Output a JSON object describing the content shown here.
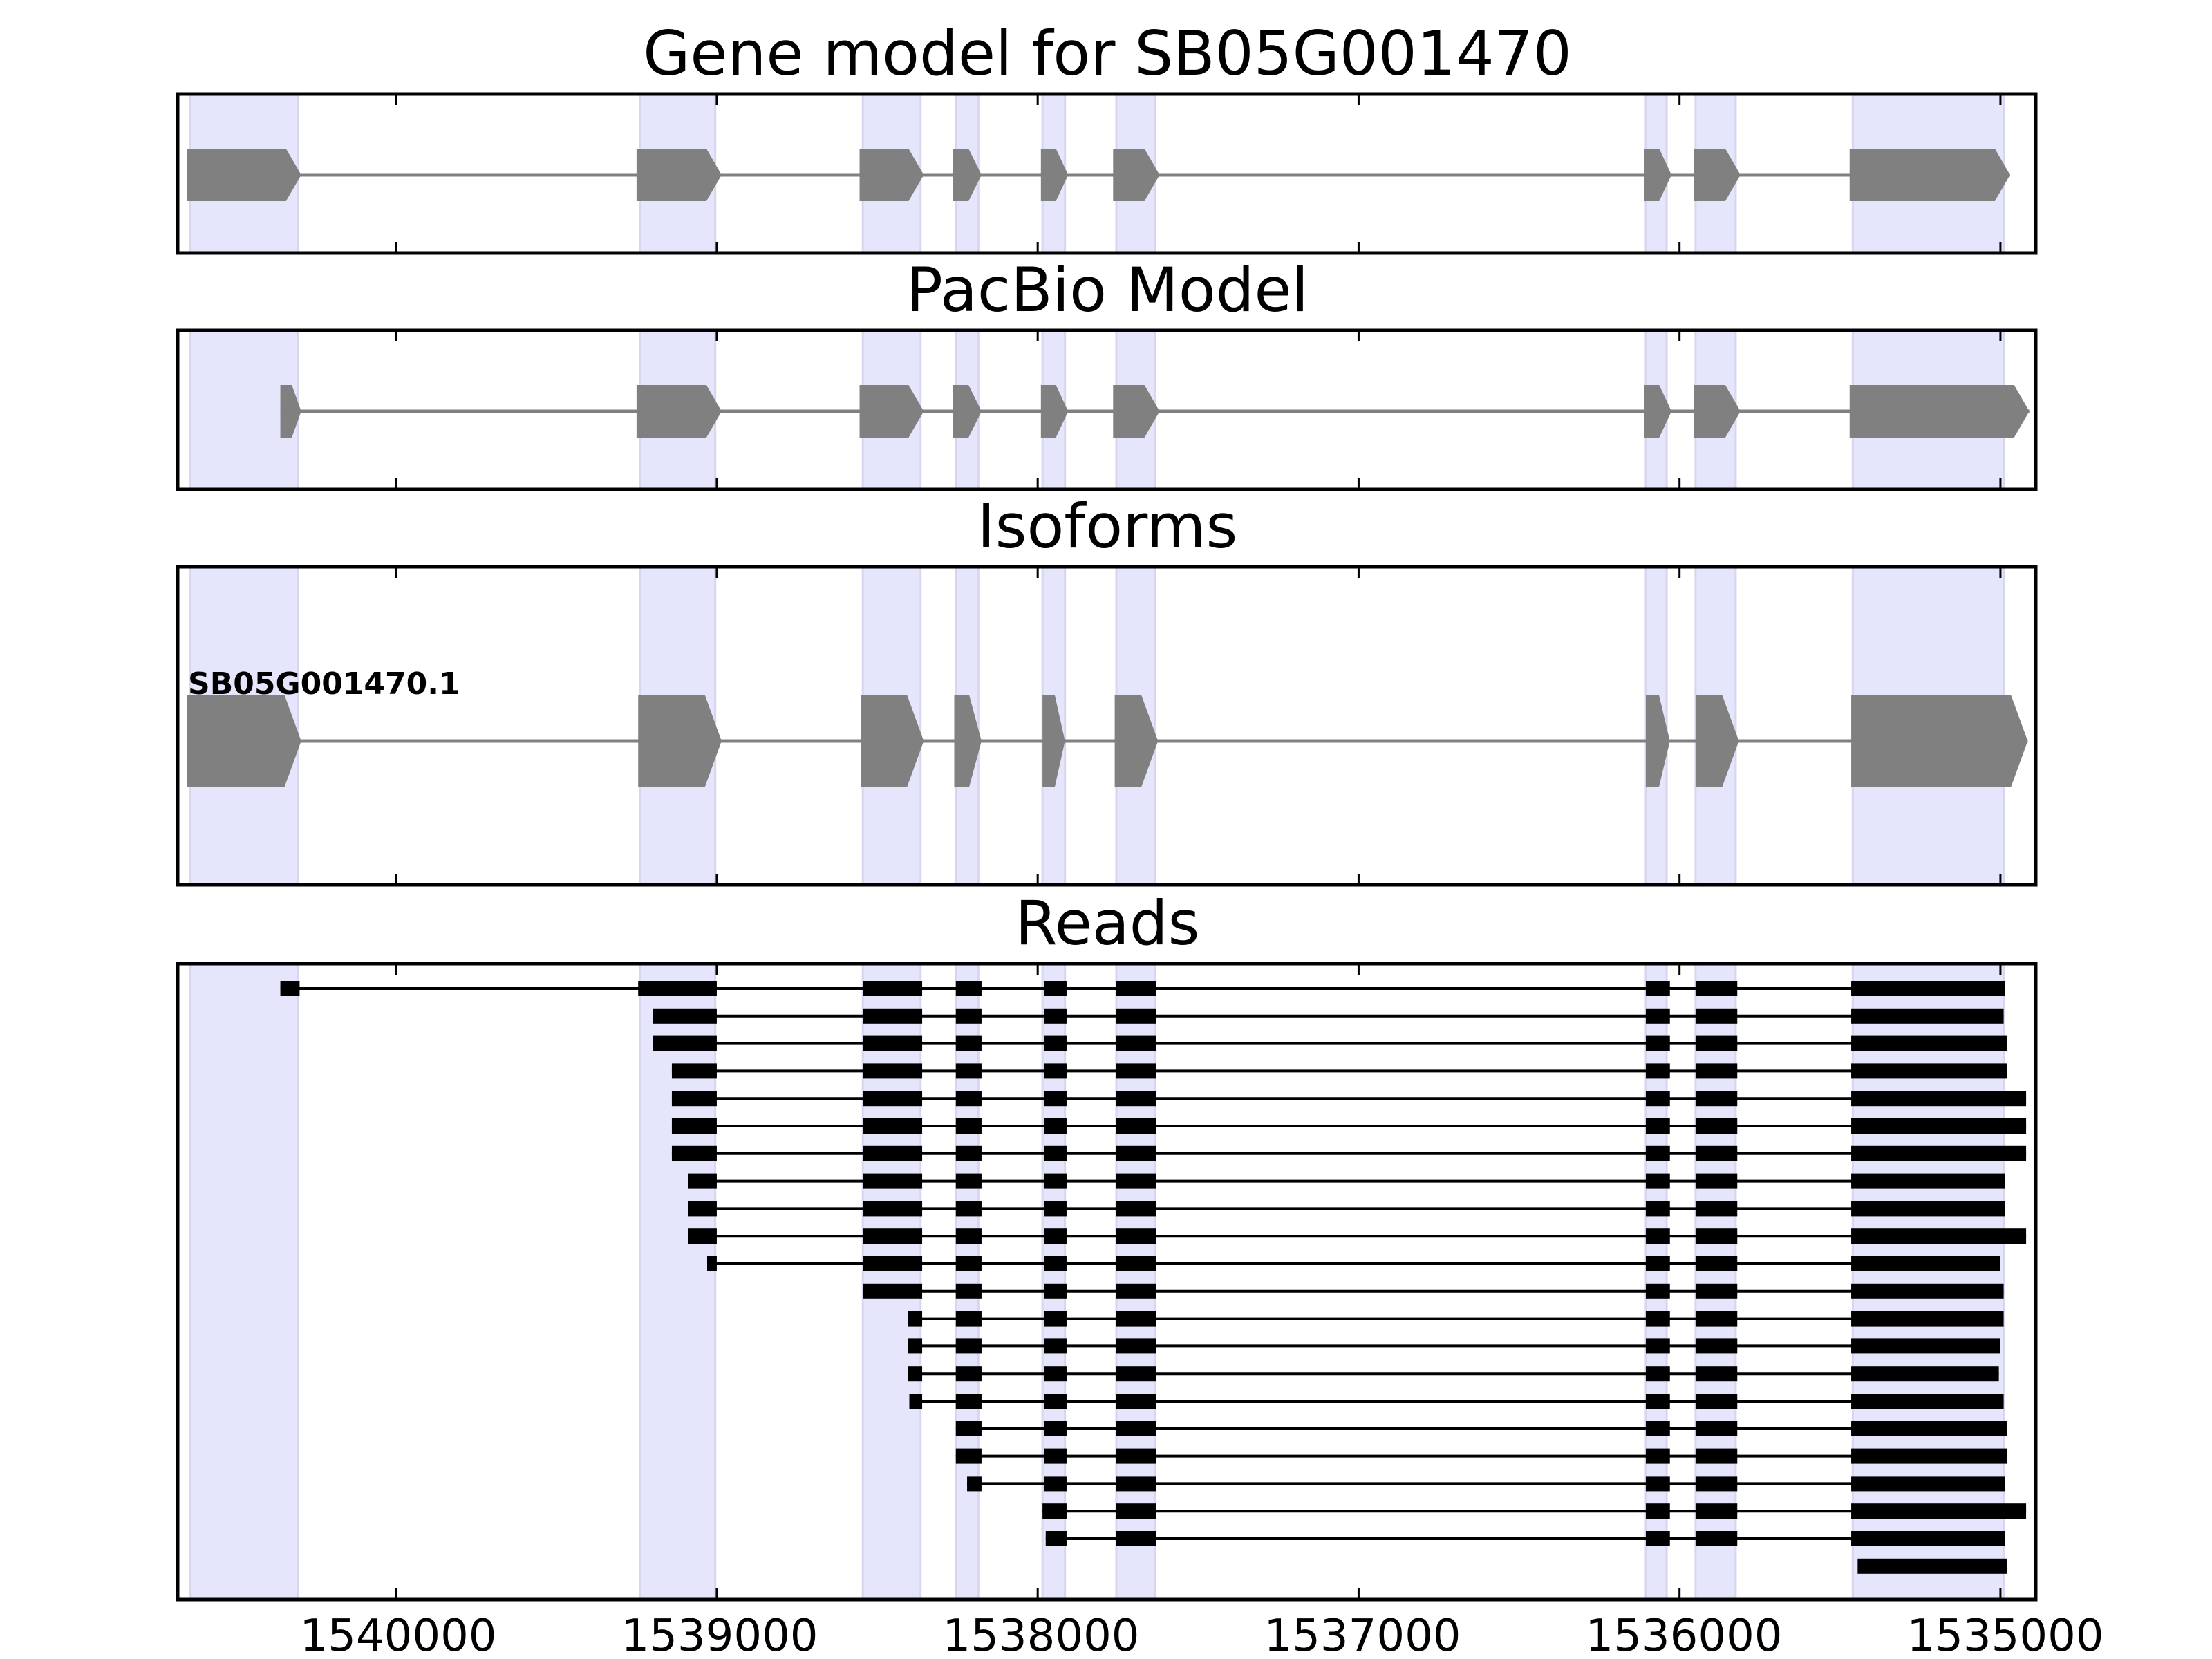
{
  "chart_data": {
    "type": "gene-structure",
    "x_axis": {
      "reversed": true,
      "xlim": [
        1540680,
        1534890
      ],
      "ticks": [
        1540000,
        1539000,
        1538000,
        1537000,
        1536000,
        1535000
      ],
      "tick_labels": [
        "1540000",
        "1539000",
        "1538000",
        "1537000",
        "1536000",
        "1535000"
      ]
    },
    "highlight_color": "#e5e5fb",
    "feature_color": "#808080",
    "read_color": "#000000",
    "exon_regions": [
      [
        1540640,
        1540305
      ],
      [
        1539240,
        1539005
      ],
      [
        1538545,
        1538365
      ],
      [
        1538255,
        1538185
      ],
      [
        1537985,
        1537915
      ],
      [
        1537755,
        1537635
      ],
      [
        1536105,
        1536040
      ],
      [
        1535950,
        1535825
      ],
      [
        1535460,
        1534990
      ]
    ],
    "panels": [
      {
        "title": "Gene model for SB05G001470",
        "strand": "-",
        "exons": [
          [
            1540650,
            1540295
          ],
          [
            1539250,
            1538985
          ],
          [
            1538555,
            1538355
          ],
          [
            1538265,
            1538175
          ],
          [
            1537990,
            1537905
          ],
          [
            1537765,
            1537620
          ],
          [
            1536110,
            1536025
          ],
          [
            1535955,
            1535810
          ],
          [
            1535470,
            1534970
          ]
        ]
      },
      {
        "title": "PacBio Model",
        "strand": "-",
        "exons": [
          [
            1540360,
            1540295
          ],
          [
            1539250,
            1538985
          ],
          [
            1538555,
            1538355
          ],
          [
            1538265,
            1538175
          ],
          [
            1537990,
            1537905
          ],
          [
            1537765,
            1537620
          ],
          [
            1536110,
            1536025
          ],
          [
            1535955,
            1535810
          ],
          [
            1535470,
            1534910
          ]
        ]
      },
      {
        "title": "Isoforms",
        "strand": "-",
        "isoform_label": "SB05G001470.1",
        "exons": [
          [
            1540650,
            1540295
          ],
          [
            1539245,
            1538985
          ],
          [
            1538550,
            1538355
          ],
          [
            1538260,
            1538175
          ],
          [
            1537985,
            1537915
          ],
          [
            1537760,
            1537625
          ],
          [
            1536105,
            1536030
          ],
          [
            1535950,
            1535815
          ],
          [
            1535465,
            1534915
          ]
        ]
      },
      {
        "title": "Reads",
        "reads": [
          [
            [
              1540360,
              1540300
            ],
            [
              1539245,
              1539000
            ],
            [
              1538545,
              1538360
            ],
            [
              1538255,
              1538175
            ],
            [
              1537980,
              1537910
            ],
            [
              1537755,
              1537630
            ],
            [
              1536105,
              1536030
            ],
            [
              1535950,
              1535820
            ],
            [
              1535465,
              1534985
            ]
          ],
          [
            [
              1539200,
              1539000
            ],
            [
              1538545,
              1538360
            ],
            [
              1538255,
              1538175
            ],
            [
              1537980,
              1537910
            ],
            [
              1537755,
              1537630
            ],
            [
              1536105,
              1536030
            ],
            [
              1535950,
              1535820
            ],
            [
              1535465,
              1534990
            ]
          ],
          [
            [
              1539200,
              1539000
            ],
            [
              1538545,
              1538360
            ],
            [
              1538255,
              1538175
            ],
            [
              1537980,
              1537910
            ],
            [
              1537755,
              1537630
            ],
            [
              1536105,
              1536030
            ],
            [
              1535950,
              1535820
            ],
            [
              1535465,
              1534980
            ]
          ],
          [
            [
              1539140,
              1539000
            ],
            [
              1538545,
              1538360
            ],
            [
              1538255,
              1538175
            ],
            [
              1537980,
              1537910
            ],
            [
              1537755,
              1537630
            ],
            [
              1536105,
              1536030
            ],
            [
              1535950,
              1535820
            ],
            [
              1535465,
              1534980
            ]
          ],
          [
            [
              1539140,
              1539000
            ],
            [
              1538545,
              1538360
            ],
            [
              1538255,
              1538175
            ],
            [
              1537980,
              1537910
            ],
            [
              1537755,
              1537630
            ],
            [
              1536105,
              1536030
            ],
            [
              1535950,
              1535820
            ],
            [
              1535465,
              1534920
            ]
          ],
          [
            [
              1539140,
              1539000
            ],
            [
              1538545,
              1538360
            ],
            [
              1538255,
              1538175
            ],
            [
              1537980,
              1537910
            ],
            [
              1537755,
              1537630
            ],
            [
              1536105,
              1536030
            ],
            [
              1535950,
              1535820
            ],
            [
              1535465,
              1534920
            ]
          ],
          [
            [
              1539140,
              1539000
            ],
            [
              1538545,
              1538360
            ],
            [
              1538255,
              1538175
            ],
            [
              1537980,
              1537910
            ],
            [
              1537755,
              1537630
            ],
            [
              1536105,
              1536030
            ],
            [
              1535950,
              1535820
            ],
            [
              1535465,
              1534920
            ]
          ],
          [
            [
              1539090,
              1539000
            ],
            [
              1538545,
              1538360
            ],
            [
              1538255,
              1538175
            ],
            [
              1537980,
              1537910
            ],
            [
              1537755,
              1537630
            ],
            [
              1536105,
              1536030
            ],
            [
              1535950,
              1535820
            ],
            [
              1535465,
              1534985
            ]
          ],
          [
            [
              1539090,
              1539000
            ],
            [
              1538545,
              1538360
            ],
            [
              1538255,
              1538175
            ],
            [
              1537980,
              1537910
            ],
            [
              1537755,
              1537630
            ],
            [
              1536105,
              1536030
            ],
            [
              1535950,
              1535820
            ],
            [
              1535465,
              1534985
            ]
          ],
          [
            [
              1539090,
              1539000
            ],
            [
              1538545,
              1538360
            ],
            [
              1538255,
              1538175
            ],
            [
              1537980,
              1537910
            ],
            [
              1537755,
              1537630
            ],
            [
              1536105,
              1536030
            ],
            [
              1535950,
              1535820
            ],
            [
              1535465,
              1534920
            ]
          ],
          [
            [
              1539030,
              1539000
            ],
            [
              1538545,
              1538360
            ],
            [
              1538255,
              1538175
            ],
            [
              1537980,
              1537910
            ],
            [
              1537755,
              1537630
            ],
            [
              1536105,
              1536030
            ],
            [
              1535950,
              1535820
            ],
            [
              1535465,
              1535000
            ]
          ],
          [
            [
              1538545,
              1538360
            ],
            [
              1538255,
              1538175
            ],
            [
              1537980,
              1537910
            ],
            [
              1537755,
              1537630
            ],
            [
              1536105,
              1536030
            ],
            [
              1535950,
              1535820
            ],
            [
              1535465,
              1534990
            ]
          ],
          [
            [
              1538405,
              1538360
            ],
            [
              1538255,
              1538175
            ],
            [
              1537980,
              1537910
            ],
            [
              1537755,
              1537630
            ],
            [
              1536105,
              1536030
            ],
            [
              1535950,
              1535820
            ],
            [
              1535465,
              1534990
            ]
          ],
          [
            [
              1538405,
              1538360
            ],
            [
              1538255,
              1538175
            ],
            [
              1537980,
              1537910
            ],
            [
              1537755,
              1537630
            ],
            [
              1536105,
              1536030
            ],
            [
              1535950,
              1535820
            ],
            [
              1535465,
              1535000
            ]
          ],
          [
            [
              1538405,
              1538360
            ],
            [
              1538255,
              1538175
            ],
            [
              1537980,
              1537910
            ],
            [
              1537755,
              1537630
            ],
            [
              1536105,
              1536030
            ],
            [
              1535950,
              1535820
            ],
            [
              1535465,
              1535005
            ]
          ],
          [
            [
              1538400,
              1538360
            ],
            [
              1538255,
              1538175
            ],
            [
              1537980,
              1537910
            ],
            [
              1537755,
              1537630
            ],
            [
              1536105,
              1536030
            ],
            [
              1535950,
              1535820
            ],
            [
              1535465,
              1534990
            ]
          ],
          [
            [
              1538255,
              1538175
            ],
            [
              1537980,
              1537910
            ],
            [
              1537755,
              1537630
            ],
            [
              1536105,
              1536030
            ],
            [
              1535950,
              1535820
            ],
            [
              1535465,
              1534980
            ]
          ],
          [
            [
              1538255,
              1538175
            ],
            [
              1537980,
              1537910
            ],
            [
              1537755,
              1537630
            ],
            [
              1536105,
              1536030
            ],
            [
              1535950,
              1535820
            ],
            [
              1535465,
              1534980
            ]
          ],
          [
            [
              1538220,
              1538175
            ],
            [
              1537980,
              1537910
            ],
            [
              1537755,
              1537630
            ],
            [
              1536105,
              1536030
            ],
            [
              1535950,
              1535820
            ],
            [
              1535465,
              1534985
            ]
          ],
          [
            [
              1537985,
              1537910
            ],
            [
              1537755,
              1537630
            ],
            [
              1536105,
              1536030
            ],
            [
              1535950,
              1535820
            ],
            [
              1535465,
              1534920
            ]
          ],
          [
            [
              1537975,
              1537910
            ],
            [
              1537755,
              1537630
            ],
            [
              1536105,
              1536030
            ],
            [
              1535950,
              1535820
            ],
            [
              1535465,
              1534985
            ]
          ],
          [
            [
              1535445,
              1534980
            ]
          ]
        ]
      }
    ]
  }
}
